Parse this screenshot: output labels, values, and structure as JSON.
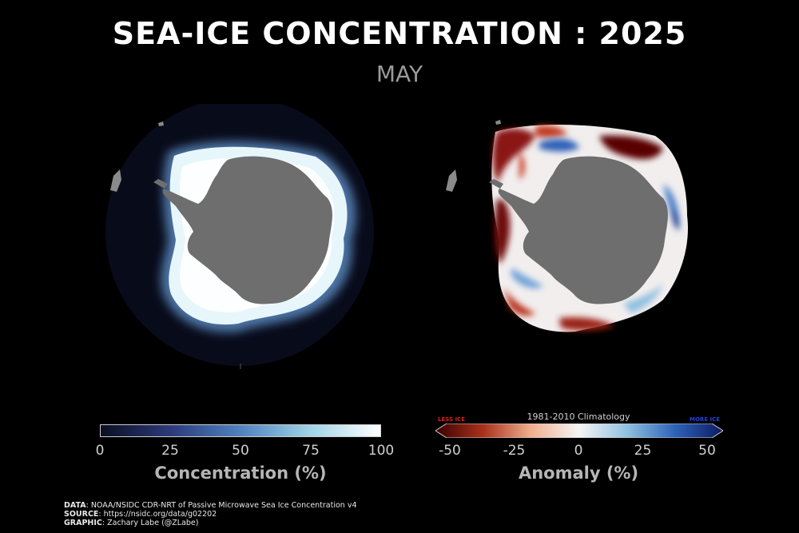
{
  "header": {
    "title": "SEA-ICE CONCENTRATION : 2025",
    "month": "MAY"
  },
  "maps": [
    {
      "name": "concentration",
      "colormap": "blues-to-white"
    },
    {
      "name": "anomaly",
      "colormap": "red-white-blue"
    }
  ],
  "colorbar_concentration": {
    "ticks": [
      "0",
      "25",
      "50",
      "75",
      "100"
    ],
    "label": "Concentration (%)",
    "colors": [
      "#0a0f20",
      "#2c3a7a",
      "#4f82c0",
      "#9fd4e6",
      "#ffffff"
    ]
  },
  "colorbar_anomaly": {
    "ticks": [
      "-50",
      "-25",
      "0",
      "25",
      "50"
    ],
    "label": "Anomaly (%)",
    "climatology": "1981-2010 Climatology",
    "less_label": "LESS ICE",
    "more_label": "MORE ICE",
    "less_color": "#e0201f",
    "more_color": "#2040e0",
    "colors": [
      "#3a0000",
      "#a8321c",
      "#f0b090",
      "#f5f5f5",
      "#8fc0e0",
      "#2d62b8",
      "#0c1a60"
    ]
  },
  "credits": {
    "data_key": "DATA",
    "data_value": ": NOAA/NSIDC CDR-NRT of Passive Microwave Sea Ice Concentration v4",
    "source_key": "SOURCE",
    "source_value": ": https://nsidc.org/data/g02202",
    "graphic_key": "GRAPHIC",
    "graphic_value": ": Zachary Labe (@ZLabe)"
  }
}
